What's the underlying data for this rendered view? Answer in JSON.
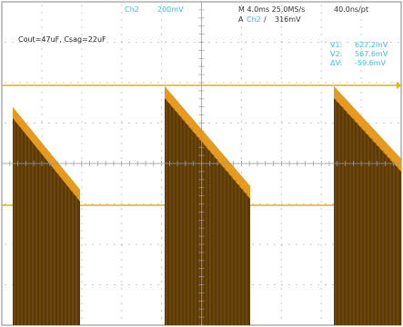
{
  "header": {
    "channel": "Ch2",
    "scale": "200mV",
    "timebase": "M 4.0ms 25.0MS/s",
    "sample_interval": "40.0ns/pt",
    "trigger_mode": "A",
    "trigger_channel": "Ch2",
    "trigger_slope_symbol": "/",
    "trigger_level": "316mV"
  },
  "annotation": {
    "label": "Cout=47uF, Csag=22uF"
  },
  "cursors": {
    "v1_label": "V1:",
    "v1_value": "627.2mV",
    "v2_label": "V2:",
    "v2_value": "567.6mV",
    "dv_label": "ΔV:",
    "dv_value": "-59.6mV"
  },
  "colors": {
    "background": "#ffffff",
    "grid": "#9a9a9a",
    "cursor_lines": "#e0b21a",
    "waveform_dark": "#5a3a08",
    "waveform_light": "#e89a1e",
    "channel_text": "#38c4d8",
    "readout_text": "#38c4d8",
    "header_text": "#303030"
  }
}
